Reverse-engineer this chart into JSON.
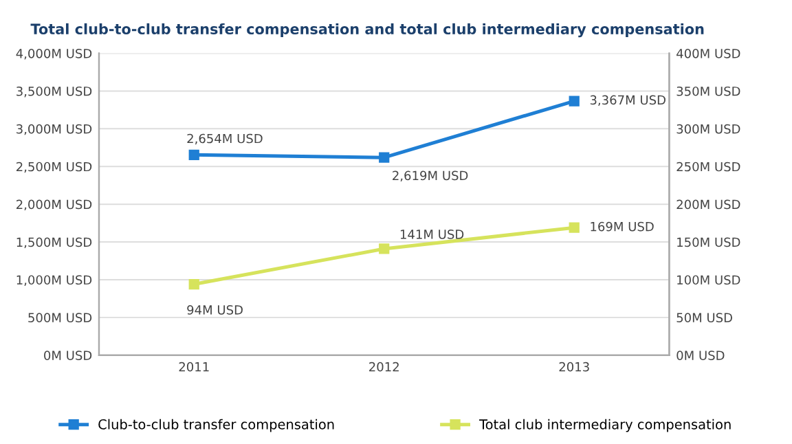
{
  "chart_data": {
    "type": "line",
    "title": "Total club-to-club transfer compensation and total club intermediary compensation",
    "categories": [
      "2011",
      "2012",
      "2013"
    ],
    "series": [
      {
        "name": "Club-to-club transfer compensation",
        "color": "#1f7fd4",
        "values": [
          2654,
          2619,
          3367
        ],
        "value_labels": [
          "2,654M USD",
          "2,619M USD",
          "3,367M USD"
        ]
      },
      {
        "name": "Total club intermediary compensation",
        "color": "#d6e35c",
        "values": [
          94,
          141,
          169
        ],
        "axis": "y2",
        "value_labels": [
          "94M USD",
          "141M USD",
          "169M USD"
        ]
      }
    ],
    "ylim": [
      0,
      4000
    ],
    "yticks": [
      {
        "value": 0,
        "label": "0M USD"
      },
      {
        "value": 500,
        "label": "500M USD"
      },
      {
        "value": 1000,
        "label": "1,000M USD"
      },
      {
        "value": 1500,
        "label": "1,500M USD"
      },
      {
        "value": 2000,
        "label": "2,000M USD"
      },
      {
        "value": 2500,
        "label": "2,500M USD"
      },
      {
        "value": 3000,
        "label": "3,000M USD"
      },
      {
        "value": 3500,
        "label": "3,500M USD"
      },
      {
        "value": 4000,
        "label": "4,000M USD"
      }
    ],
    "y2lim": [
      0,
      400
    ],
    "y2ticks": [
      {
        "value": 0,
        "label": "0M USD"
      },
      {
        "value": 50,
        "label": "50M USD"
      },
      {
        "value": 100,
        "label": "100M USD"
      },
      {
        "value": 150,
        "label": "150M USD"
      },
      {
        "value": 200,
        "label": "200M USD"
      },
      {
        "value": 250,
        "label": "250M USD"
      },
      {
        "value": 300,
        "label": "300M USD"
      },
      {
        "value": 350,
        "label": "350M USD"
      },
      {
        "value": 400,
        "label": "400M USD"
      }
    ],
    "grid": "y",
    "legend": "bottom",
    "marker": "square",
    "line_style": "solid"
  }
}
